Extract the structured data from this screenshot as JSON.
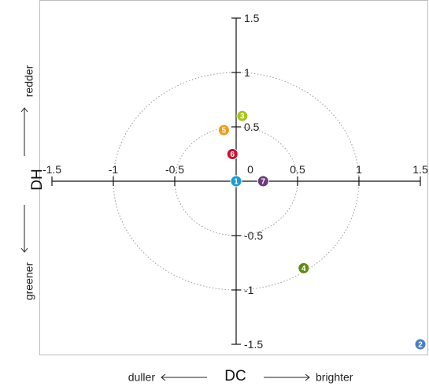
{
  "chart_data": {
    "type": "scatter",
    "title": "",
    "xlabel": "DC",
    "ylabel": "DH",
    "xlim": [
      -1.5,
      1.5
    ],
    "ylim": [
      -1.5,
      1.5
    ],
    "x_ticks": [
      "-1.5",
      "-1",
      "-0.5",
      "0",
      "0.5",
      "1",
      "1.5"
    ],
    "y_ticks": [
      "1.5",
      "1",
      "0.5",
      "-0.5",
      "-1",
      "-1.5"
    ],
    "rings": [
      0.5,
      1
    ],
    "x_negative_label": "duller",
    "x_positive_label": "brighter",
    "y_positive_label": "redder",
    "y_negative_label": "greener",
    "points": [
      {
        "label": "1",
        "x": 0.0,
        "y": 0.0,
        "color": "#1a9ad6"
      },
      {
        "label": "2",
        "x": 1.5,
        "y": -1.5,
        "color": "#4a7fc1"
      },
      {
        "label": "3",
        "x": 0.05,
        "y": 0.6,
        "color": "#a6c41d"
      },
      {
        "label": "4",
        "x": 0.55,
        "y": -0.8,
        "color": "#5f8a14"
      },
      {
        "label": "5",
        "x": -0.1,
        "y": 0.47,
        "color": "#ef9b1c"
      },
      {
        "label": "6",
        "x": -0.03,
        "y": 0.25,
        "color": "#c41230"
      },
      {
        "label": "7",
        "x": 0.22,
        "y": 0.0,
        "color": "#6a3d7a"
      }
    ]
  }
}
